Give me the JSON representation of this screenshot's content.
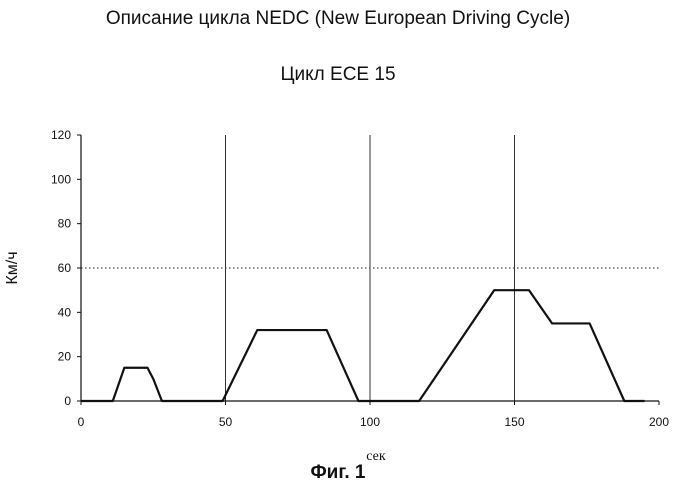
{
  "header": {
    "title": "Описание цикла NEDC (New European Driving Cycle)",
    "subtitle": "Цикл ECE 15"
  },
  "caption": "Фиг. 1",
  "chart_data": {
    "type": "line",
    "title": "Цикл ECE 15",
    "xlabel": "сек",
    "ylabel": "Км/ч",
    "xlim": [
      0,
      200
    ],
    "ylim": [
      0,
      120
    ],
    "xticks": [
      0,
      50,
      100,
      150,
      200
    ],
    "yticks": [
      0,
      20,
      40,
      60,
      80,
      100,
      120
    ],
    "grid": {
      "vertical": [
        50,
        100,
        150
      ],
      "horizontal": [
        60
      ]
    },
    "series": [
      {
        "x": [
          0,
          11,
          15,
          23,
          25,
          28,
          49,
          61,
          85,
          96,
          117,
          143,
          155,
          163,
          176,
          188,
          195
        ],
        "y": [
          0,
          0,
          15,
          15,
          10,
          0,
          0,
          32,
          32,
          0,
          0,
          50,
          50,
          35,
          35,
          0,
          0
        ]
      }
    ]
  }
}
